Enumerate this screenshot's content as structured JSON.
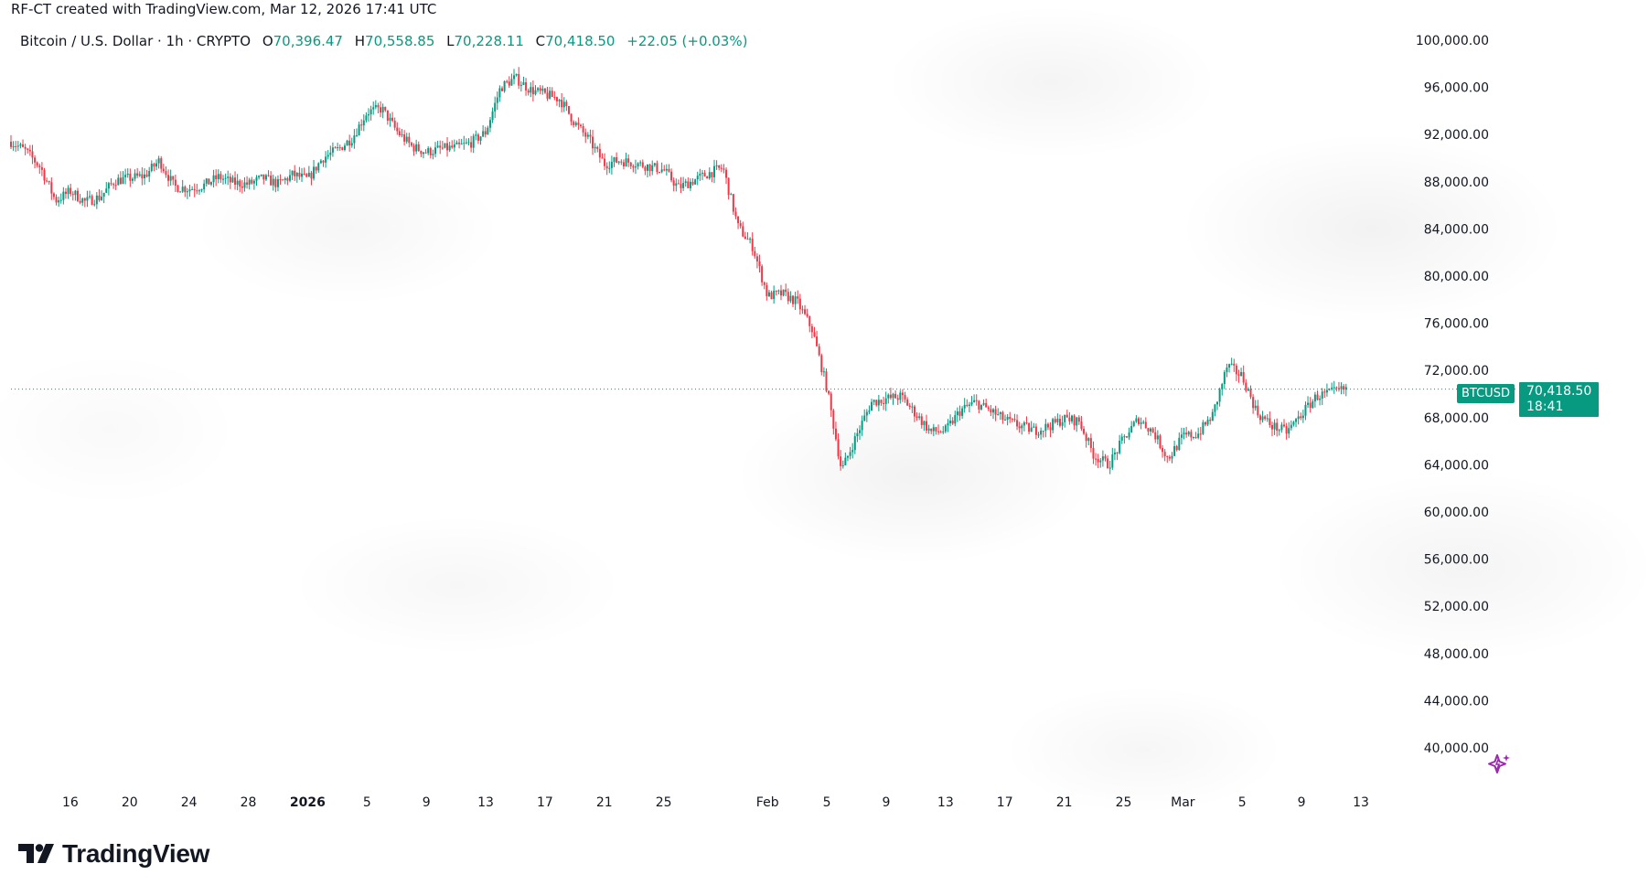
{
  "attribution": "RF-CT created with TradingView.com, Mar 12, 2026 17:41 UTC",
  "symbol": {
    "description": "Bitcoin / U.S. Dollar · 1h · CRYPTO",
    "open_label": "O",
    "open": "70,396.47",
    "high_label": "H",
    "high": "70,558.85",
    "low_label": "L",
    "low": "70,228.11",
    "close_label": "C",
    "close": "70,418.50",
    "change": "+22.05 (+0.03%)"
  },
  "price_badge": {
    "ticker": "BTCUSD",
    "price": "70,418.50",
    "countdown": "18:41"
  },
  "logo": {
    "name": "TradingView"
  },
  "colors": {
    "up": "#089981",
    "down": "#F23645",
    "last_price_line": "#089981",
    "ai_icon": "#9C27B0"
  },
  "icons": {
    "brand": "tradingview-logo-icon",
    "assistant": "ai-sparkle-icon"
  },
  "chart_data": {
    "type": "line",
    "style": "candlestick",
    "ylim": [
      40000,
      100000
    ],
    "yticks": [
      {
        "value": 100000,
        "label": "100,000.00"
      },
      {
        "value": 96000,
        "label": "96,000.00"
      },
      {
        "value": 92000,
        "label": "92,000.00"
      },
      {
        "value": 88000,
        "label": "88,000.00"
      },
      {
        "value": 84000,
        "label": "84,000.00"
      },
      {
        "value": 80000,
        "label": "80,000.00"
      },
      {
        "value": 76000,
        "label": "76,000.00"
      },
      {
        "value": 72000,
        "label": "72,000.00"
      },
      {
        "value": 68000,
        "label": "68,000.00"
      },
      {
        "value": 64000,
        "label": "64,000.00"
      },
      {
        "value": 60000,
        "label": "60,000.00"
      },
      {
        "value": 56000,
        "label": "56,000.00"
      },
      {
        "value": 52000,
        "label": "52,000.00"
      },
      {
        "value": 48000,
        "label": "48,000.00"
      },
      {
        "value": 44000,
        "label": "44,000.00"
      },
      {
        "value": 40000,
        "label": "40,000.00"
      }
    ],
    "xticks": [
      {
        "date": "2025-12-16",
        "label": "16"
      },
      {
        "date": "2025-12-20",
        "label": "20"
      },
      {
        "date": "2025-12-24",
        "label": "24"
      },
      {
        "date": "2025-12-28",
        "label": "28"
      },
      {
        "date": "2026-01-01",
        "label": "2026",
        "bold": true
      },
      {
        "date": "2026-01-05",
        "label": "5"
      },
      {
        "date": "2026-01-09",
        "label": "9"
      },
      {
        "date": "2026-01-13",
        "label": "13"
      },
      {
        "date": "2026-01-17",
        "label": "17"
      },
      {
        "date": "2026-01-21",
        "label": "21"
      },
      {
        "date": "2026-01-25",
        "label": "25"
      },
      {
        "date": "2026-02-01",
        "label": "Feb"
      },
      {
        "date": "2026-02-05",
        "label": "5"
      },
      {
        "date": "2026-02-09",
        "label": "9"
      },
      {
        "date": "2026-02-13",
        "label": "13"
      },
      {
        "date": "2026-02-17",
        "label": "17"
      },
      {
        "date": "2026-02-21",
        "label": "21"
      },
      {
        "date": "2026-02-25",
        "label": "25"
      },
      {
        "date": "2026-03-01",
        "label": "Mar"
      },
      {
        "date": "2026-03-05",
        "label": "5"
      },
      {
        "date": "2026-03-09",
        "label": "9"
      },
      {
        "date": "2026-03-13",
        "label": "13"
      }
    ],
    "last_price": 70418.5,
    "series": [
      {
        "points": [
          {
            "x": "2025-12-12",
            "y": 91400
          },
          {
            "x": "2025-12-13",
            "y": 90600
          },
          {
            "x": "2025-12-14",
            "y": 89200
          },
          {
            "x": "2025-12-15",
            "y": 86400
          },
          {
            "x": "2025-12-16",
            "y": 87200
          },
          {
            "x": "2025-12-17",
            "y": 86300
          },
          {
            "x": "2025-12-18",
            "y": 86700
          },
          {
            "x": "2025-12-19",
            "y": 88100
          },
          {
            "x": "2025-12-20",
            "y": 88300
          },
          {
            "x": "2025-12-21",
            "y": 88500
          },
          {
            "x": "2025-12-22",
            "y": 89800
          },
          {
            "x": "2025-12-23",
            "y": 87600
          },
          {
            "x": "2025-12-24",
            "y": 87400
          },
          {
            "x": "2025-12-25",
            "y": 87700
          },
          {
            "x": "2025-12-26",
            "y": 88400
          },
          {
            "x": "2025-12-27",
            "y": 87900
          },
          {
            "x": "2025-12-28",
            "y": 87800
          },
          {
            "x": "2025-12-29",
            "y": 88300
          },
          {
            "x": "2025-12-30",
            "y": 87800
          },
          {
            "x": "2025-12-31",
            "y": 88600
          },
          {
            "x": "2026-01-01",
            "y": 88200
          },
          {
            "x": "2026-01-02",
            "y": 90000
          },
          {
            "x": "2026-01-03",
            "y": 90700
          },
          {
            "x": "2026-01-04",
            "y": 91700
          },
          {
            "x": "2026-01-05",
            "y": 93900
          },
          {
            "x": "2026-01-06",
            "y": 94200
          },
          {
            "x": "2026-01-07",
            "y": 92300
          },
          {
            "x": "2026-01-08",
            "y": 91000
          },
          {
            "x": "2026-01-09",
            "y": 90500
          },
          {
            "x": "2026-01-10",
            "y": 90800
          },
          {
            "x": "2026-01-11",
            "y": 90900
          },
          {
            "x": "2026-01-12",
            "y": 91300
          },
          {
            "x": "2026-01-13",
            "y": 92200
          },
          {
            "x": "2026-01-14",
            "y": 96000
          },
          {
            "x": "2026-01-15",
            "y": 96800
          },
          {
            "x": "2026-01-16",
            "y": 95800
          },
          {
            "x": "2026-01-17",
            "y": 95400
          },
          {
            "x": "2026-01-18",
            "y": 95000
          },
          {
            "x": "2026-01-19",
            "y": 93000
          },
          {
            "x": "2026-01-20",
            "y": 91500
          },
          {
            "x": "2026-01-21",
            "y": 89500
          },
          {
            "x": "2026-01-22",
            "y": 89800
          },
          {
            "x": "2026-01-23",
            "y": 89600
          },
          {
            "x": "2026-01-24",
            "y": 89300
          },
          {
            "x": "2026-01-25",
            "y": 89000
          },
          {
            "x": "2026-01-26",
            "y": 87500
          },
          {
            "x": "2026-01-27",
            "y": 88100
          },
          {
            "x": "2026-01-28",
            "y": 88700
          },
          {
            "x": "2026-01-29",
            "y": 89200
          },
          {
            "x": "2026-01-30",
            "y": 84200
          },
          {
            "x": "2026-01-31",
            "y": 82500
          },
          {
            "x": "2026-02-01",
            "y": 78300
          },
          {
            "x": "2026-02-02",
            "y": 78500
          },
          {
            "x": "2026-02-03",
            "y": 77800
          },
          {
            "x": "2026-02-04",
            "y": 75500
          },
          {
            "x": "2026-02-05",
            "y": 70500
          },
          {
            "x": "2026-02-06",
            "y": 63500
          },
          {
            "x": "2026-02-07",
            "y": 66500
          },
          {
            "x": "2026-02-08",
            "y": 69300
          },
          {
            "x": "2026-02-09",
            "y": 69600
          },
          {
            "x": "2026-02-10",
            "y": 69800
          },
          {
            "x": "2026-02-11",
            "y": 68300
          },
          {
            "x": "2026-02-12",
            "y": 66800
          },
          {
            "x": "2026-02-13",
            "y": 66900
          },
          {
            "x": "2026-02-14",
            "y": 68600
          },
          {
            "x": "2026-02-15",
            "y": 69300
          },
          {
            "x": "2026-02-16",
            "y": 68600
          },
          {
            "x": "2026-02-17",
            "y": 67800
          },
          {
            "x": "2026-02-18",
            "y": 67300
          },
          {
            "x": "2026-02-19",
            "y": 66900
          },
          {
            "x": "2026-02-20",
            "y": 67300
          },
          {
            "x": "2026-02-21",
            "y": 67900
          },
          {
            "x": "2026-02-22",
            "y": 67700
          },
          {
            "x": "2026-02-23",
            "y": 64800
          },
          {
            "x": "2026-02-24",
            "y": 64000
          },
          {
            "x": "2026-02-25",
            "y": 66200
          },
          {
            "x": "2026-02-26",
            "y": 67900
          },
          {
            "x": "2026-02-27",
            "y": 66800
          },
          {
            "x": "2026-02-28",
            "y": 64500
          },
          {
            "x": "2026-03-01",
            "y": 66400
          },
          {
            "x": "2026-03-02",
            "y": 66600
          },
          {
            "x": "2026-03-03",
            "y": 68200
          },
          {
            "x": "2026-03-04",
            "y": 72400
          },
          {
            "x": "2026-03-05",
            "y": 71500
          },
          {
            "x": "2026-03-06",
            "y": 68400
          },
          {
            "x": "2026-03-07",
            "y": 67300
          },
          {
            "x": "2026-03-08",
            "y": 66800
          },
          {
            "x": "2026-03-09",
            "y": 68300
          },
          {
            "x": "2026-03-10",
            "y": 69800
          },
          {
            "x": "2026-03-11",
            "y": 70100
          },
          {
            "x": "2026-03-12",
            "y": 70418.5
          }
        ]
      }
    ]
  }
}
